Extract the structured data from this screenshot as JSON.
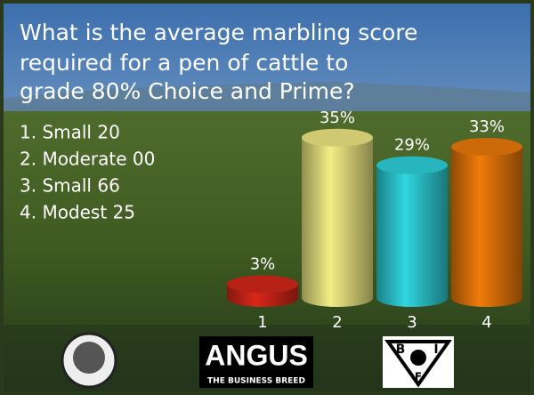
{
  "chart_data": {
    "type": "bar",
    "title": "What is the average marbling score required for a pen of cattle to grade 80% Choice and Prime?",
    "categories": [
      "1",
      "2",
      "3",
      "4"
    ],
    "values": [
      3,
      35,
      29,
      33
    ],
    "value_labels": [
      "3%",
      "35%",
      "29%",
      "33%"
    ],
    "colors": [
      "#d9281a",
      "#f4ee86",
      "#2fd6e0",
      "#f07c0a"
    ]
  },
  "answers": [
    "1. Small 20",
    "2. Moderate 00",
    "3. Small 66",
    "4. Modest 25"
  ],
  "logos": {
    "angus": "ANGUS",
    "angus_tagline": "THE BUSINESS BREED",
    "bif_letters": [
      "B",
      "I",
      "F"
    ]
  }
}
